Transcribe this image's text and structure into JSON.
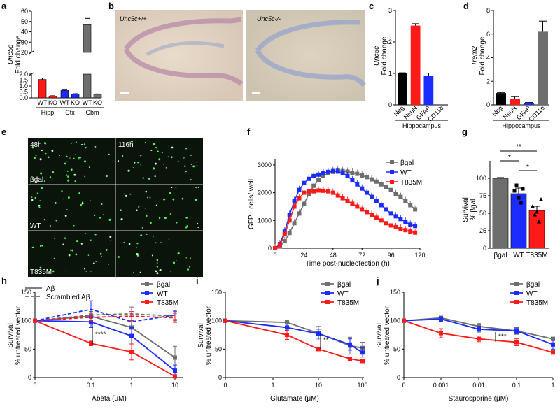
{
  "colors": {
    "grey": "#6e6e6e",
    "red": "#ff1a1a",
    "blue": "#1a2cff",
    "black": "#000000"
  },
  "panel_letters": [
    "a",
    "b",
    "c",
    "d",
    "e",
    "f",
    "g",
    "h",
    "i",
    "j"
  ],
  "panel_a": {
    "ylabel_gene": "Unc5c",
    "ylabel_rest": "Fold change",
    "yticks_low": [
      "0.0",
      "0.5",
      "1.0",
      "1.5",
      "2.0"
    ],
    "yticks_high": [
      "20",
      "30",
      "40",
      "50",
      "60"
    ],
    "bar_labels": [
      "WT",
      "KO",
      "WT",
      "KO",
      "WT",
      "KO"
    ],
    "groups": [
      "Hipp",
      "Ctx",
      "Cbm"
    ],
    "chart_data": {
      "type": "bar",
      "categories": [
        "Hipp WT",
        "Hipp KO",
        "Ctx WT",
        "Ctx KO",
        "Cbm WT",
        "Cbm KO"
      ],
      "values": [
        1.55,
        0.15,
        0.62,
        0.32,
        47,
        0.3
      ],
      "errors": [
        0.12,
        0.03,
        0.04,
        0.03,
        6,
        0.03
      ],
      "colors": [
        "#ff1a1a",
        "#ff1a1a",
        "#1a2cff",
        "#1a2cff",
        "#6e6e6e",
        "#6e6e6e"
      ]
    }
  },
  "panel_b": {
    "left_label": "Unc5c+/+",
    "right_label": "Unc5c-/-"
  },
  "panel_c": {
    "ylabel_gene": "Unc5c",
    "ylabel_rest": "Fold change",
    "yticks": [
      "0",
      "1",
      "2",
      "3"
    ],
    "categories": [
      "Neg",
      "NeuN",
      "GFAP",
      "CD11b"
    ],
    "group_label": "Hippocampus",
    "chart_data": {
      "type": "bar",
      "categories": [
        "Neg",
        "NeuN",
        "GFAP",
        "CD11b"
      ],
      "values": [
        1.0,
        2.52,
        0.93,
        0.0
      ],
      "errors": [
        0.02,
        0.06,
        0.08,
        0
      ],
      "colors": [
        "#000000",
        "#ff1a1a",
        "#1a2cff",
        "#6e6e6e"
      ],
      "ylim": [
        0,
        3
      ]
    }
  },
  "panel_d": {
    "ylabel_gene": "Trem2",
    "ylabel_rest": "Fold change",
    "yticks": [
      "0",
      "2",
      "4",
      "6",
      "8"
    ],
    "categories": [
      "Neg",
      "NeuN",
      "GFAP",
      "CD11b"
    ],
    "group_label": "Hippocampus",
    "chart_data": {
      "type": "bar",
      "categories": [
        "Neg",
        "NeuN",
        "GFAP",
        "CD11b"
      ],
      "values": [
        1.0,
        0.5,
        0.15,
        6.2
      ],
      "errors": [
        0.05,
        0.2,
        0.05,
        0.9
      ],
      "colors": [
        "#000000",
        "#ff1a1a",
        "#1a2cff",
        "#6e6e6e"
      ],
      "ylim": [
        0,
        8
      ]
    }
  },
  "panel_e": {
    "time_labels": [
      "48h",
      "116h"
    ],
    "row_labels": [
      "βgal",
      "WT",
      "T835M"
    ]
  },
  "panel_f": {
    "ylabel": "GFP+ cells/ well",
    "xlabel": "Time post-nucleofection (h)",
    "yticks": [
      "0",
      "1000",
      "2000",
      "3000"
    ],
    "xticks": [
      "0",
      "24",
      "48",
      "72",
      "96",
      "120"
    ],
    "legend": [
      "βgal",
      "WT",
      "T835M"
    ],
    "chart_data": {
      "type": "line",
      "x": [
        0,
        4,
        8,
        12,
        16,
        20,
        24,
        28,
        32,
        36,
        40,
        44,
        48,
        52,
        56,
        60,
        64,
        68,
        72,
        76,
        80,
        84,
        88,
        92,
        96,
        100,
        104,
        108,
        112,
        116
      ],
      "series": [
        {
          "name": "βgal",
          "color": "#6e6e6e",
          "values": [
            0,
            60,
            250,
            550,
            900,
            1250,
            1600,
            1950,
            2250,
            2450,
            2600,
            2700,
            2750,
            2800,
            2780,
            2760,
            2720,
            2680,
            2620,
            2560,
            2480,
            2400,
            2300,
            2200,
            2100,
            1950,
            1850,
            1700,
            1550,
            1400
          ]
        },
        {
          "name": "WT",
          "color": "#1a2cff",
          "values": [
            0,
            150,
            600,
            1200,
            1700,
            2100,
            2350,
            2500,
            2600,
            2650,
            2700,
            2750,
            2780,
            2760,
            2700,
            2600,
            2450,
            2300,
            2150,
            2000,
            1850,
            1700,
            1550,
            1400,
            1250,
            1150,
            1050,
            950,
            850,
            800
          ]
        },
        {
          "name": "T835M",
          "color": "#ff1a1a",
          "values": [
            0,
            120,
            500,
            1000,
            1500,
            1800,
            2000,
            2050,
            2050,
            2080,
            2070,
            2050,
            2000,
            1900,
            1800,
            1700,
            1600,
            1500,
            1400,
            1300,
            1200,
            1100,
            1000,
            900,
            820,
            760,
            700,
            650,
            600,
            560
          ]
        }
      ],
      "ylim": [
        0,
        3200
      ],
      "xlim": [
        0,
        120
      ]
    }
  },
  "panel_g": {
    "ylabel_top": "Survival",
    "ylabel_bot": "% βgal",
    "yticks": [
      "0",
      "25",
      "50",
      "75",
      "100"
    ],
    "categories": [
      "βgal",
      "WT",
      "T835M"
    ],
    "sig": [
      "*",
      "**",
      "*"
    ],
    "chart_data": {
      "type": "bar",
      "categories": [
        "βgal",
        "WT",
        "T835M"
      ],
      "values": [
        100,
        78,
        54
      ],
      "errors": [
        1,
        8,
        6
      ],
      "colors": [
        "#6e6e6e",
        "#1a2cff",
        "#ff1a1a"
      ],
      "ylim": [
        0,
        125
      ]
    }
  },
  "panel_h": {
    "ylabel_top": "Survival",
    "ylabel_bot": "% untreated vector",
    "xlabel": "Abeta (μM)",
    "yticks": [
      "0",
      "50",
      "100",
      "150"
    ],
    "xticks": [
      "0",
      "0.1",
      "1",
      "10"
    ],
    "legend_styles": [
      "Aβ",
      "Scrambled Aβ"
    ],
    "legend": [
      "βgal",
      "WT",
      "T835M"
    ],
    "sig": "****",
    "chart_data": {
      "type": "line",
      "x": [
        0,
        0.1,
        1,
        10
      ],
      "series": [
        {
          "name": "βgal",
          "style": "solid",
          "color": "#6e6e6e",
          "values": [
            100,
            108,
            88,
            35
          ],
          "errors": [
            0,
            8,
            12,
            20
          ]
        },
        {
          "name": "WT",
          "style": "solid",
          "color": "#1a2cff",
          "values": [
            100,
            98,
            73,
            12
          ],
          "errors": [
            0,
            10,
            14,
            10
          ]
        },
        {
          "name": "T835M",
          "style": "solid",
          "color": "#ff1a1a",
          "values": [
            100,
            60,
            45,
            2
          ],
          "errors": [
            0,
            4,
            14,
            2
          ]
        },
        {
          "name": "βgal",
          "style": "dashed",
          "color": "#6e6e6e",
          "values": [
            100,
            110,
            112,
            108
          ],
          "errors": [
            0,
            6,
            12,
            8
          ]
        },
        {
          "name": "WT",
          "style": "dashed",
          "color": "#1a2cff",
          "values": [
            100,
            120,
            98,
            110
          ],
          "errors": [
            0,
            15,
            10,
            8
          ]
        },
        {
          "name": "T835M",
          "style": "dashed",
          "color": "#ff1a1a",
          "values": [
            100,
            106,
            108,
            105
          ],
          "errors": [
            0,
            6,
            8,
            8
          ]
        }
      ],
      "ylim": [
        0,
        150
      ]
    }
  },
  "panel_i": {
    "ylabel_top": "Survival",
    "ylabel_bot": "% untreated vector",
    "xlabel": "Glutamate (μM)",
    "yticks": [
      "0",
      "50",
      "100",
      "150"
    ],
    "xticks": [
      "0",
      "1",
      "10",
      "100"
    ],
    "legend": [
      "βgal",
      "WT",
      "T835M"
    ],
    "sig": "**",
    "chart_data": {
      "type": "line",
      "x": [
        0,
        2,
        10,
        50,
        100
      ],
      "series": [
        {
          "name": "βgal",
          "color": "#6e6e6e",
          "values": [
            100,
            97,
            78,
            56,
            52
          ],
          "errors": [
            0,
            3,
            12,
            15,
            10
          ]
        },
        {
          "name": "WT",
          "color": "#1a2cff",
          "values": [
            100,
            88,
            77,
            58,
            44
          ],
          "errors": [
            0,
            6,
            8,
            10,
            8
          ]
        },
        {
          "name": "T835M",
          "color": "#ff1a1a",
          "values": [
            100,
            75,
            50,
            33,
            29
          ],
          "errors": [
            0,
            8,
            3,
            3,
            3
          ]
        }
      ],
      "ylim": [
        0,
        150
      ]
    }
  },
  "panel_j": {
    "ylabel_top": "Survival",
    "ylabel_bot": "% untreated vector",
    "xlabel": "Staurosporine (μM)",
    "yticks": [
      "0",
      "50",
      "100",
      "150"
    ],
    "xticks": [
      "0",
      "0.001",
      "0.01",
      "0.1",
      "1"
    ],
    "legend": [
      "βgal",
      "WT",
      "T835M"
    ],
    "sig": "***",
    "chart_data": {
      "type": "line",
      "x": [
        0,
        0.001,
        0.01,
        0.1,
        1
      ],
      "series": [
        {
          "name": "βgal",
          "color": "#6e6e6e",
          "values": [
            100,
            105,
            90,
            82,
            68
          ],
          "errors": [
            0,
            3,
            5,
            6,
            3
          ]
        },
        {
          "name": "WT",
          "color": "#1a2cff",
          "values": [
            100,
            103,
            85,
            82,
            58
          ],
          "errors": [
            0,
            4,
            5,
            5,
            8
          ]
        },
        {
          "name": "T835M",
          "color": "#ff1a1a",
          "values": [
            100,
            78,
            68,
            62,
            44
          ],
          "errors": [
            0,
            8,
            5,
            6,
            3
          ]
        }
      ],
      "ylim": [
        0,
        150
      ]
    }
  }
}
